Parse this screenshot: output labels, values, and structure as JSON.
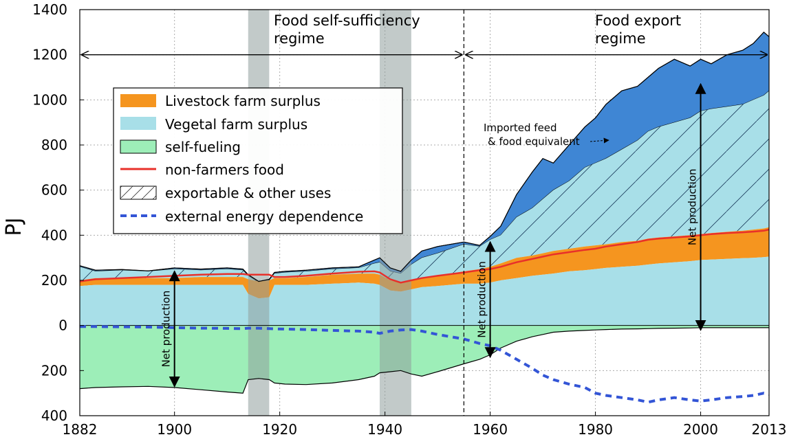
{
  "chart_data": {
    "type": "area",
    "ylabel": "PJ",
    "xlim": [
      1882,
      2013
    ],
    "ylim": [
      -400,
      1400
    ],
    "x_ticks": [
      "1882",
      "1900",
      "1920",
      "1940",
      "1960",
      "1980",
      "2000",
      "2013"
    ],
    "y_ticks": [
      {
        "v": 1400,
        "label": "1400"
      },
      {
        "v": 1200,
        "label": "1200"
      },
      {
        "v": 1000,
        "label": "1000"
      },
      {
        "v": 800,
        "label": "800"
      },
      {
        "v": 600,
        "label": "600"
      },
      {
        "v": 400,
        "label": "400"
      },
      {
        "v": 200,
        "label": "200"
      },
      {
        "v": 0,
        "label": "0"
      },
      {
        "v": -200,
        "label": "200"
      },
      {
        "v": -400,
        "label": "400"
      }
    ],
    "grid": true,
    "regimes": [
      {
        "label_line1": "Food self-sufficiency",
        "label_line2": "regime",
        "from": 1882,
        "to": 1955
      },
      {
        "label_line1": "Food export",
        "label_line2": "regime",
        "from": 1955,
        "to": 2013
      }
    ],
    "regime_divider_year": 1955,
    "shaded_periods": [
      [
        1914,
        1918
      ],
      [
        1939,
        1945
      ]
    ],
    "legend": [
      {
        "key": "livestock",
        "label": "Livestock farm surplus",
        "color": "#f5951f"
      },
      {
        "key": "vegetal",
        "label": "Vegetal farm surplus",
        "color": "#a8dfe8"
      },
      {
        "key": "self_fueling",
        "label": "self-fueling",
        "color": "#9deeb8"
      },
      {
        "key": "non_farmers",
        "label": "non-farmers food",
        "color": "#e8302a"
      },
      {
        "key": "exportable",
        "label": "exportable & other uses",
        "color": "#ffffff"
      },
      {
        "key": "external",
        "label": "external energy dependence",
        "color": "#3355d6"
      }
    ],
    "legend_position": "upper-left",
    "annotations": {
      "imported_line1": "Imported feed",
      "imported_line2": "& food equivalent",
      "net_production": "Net production"
    },
    "net_production_arrows": [
      {
        "x": 1900,
        "from": -270,
        "to": 240
      },
      {
        "x": 1960,
        "from": -140,
        "to": 370
      },
      {
        "x": 2000,
        "from": -20,
        "to": 1070
      }
    ],
    "series": {
      "x": [
        1882,
        1885,
        1890,
        1895,
        1900,
        1905,
        1910,
        1913,
        1914,
        1916,
        1918,
        1919,
        1921,
        1925,
        1930,
        1935,
        1938,
        1939,
        1941,
        1943,
        1945,
        1947,
        1950,
        1955,
        1958,
        1960,
        1962,
        1965,
        1968,
        1970,
        1972,
        1975,
        1978,
        1980,
        1982,
        1985,
        1988,
        1990,
        1992,
        1995,
        1998,
        2000,
        2002,
        2005,
        2008,
        2010,
        2012,
        2013
      ],
      "vegetal_top": [
        175,
        180,
        180,
        180,
        180,
        180,
        180,
        180,
        140,
        120,
        125,
        180,
        180,
        180,
        185,
        190,
        185,
        180,
        155,
        150,
        160,
        170,
        175,
        185,
        185,
        190,
        200,
        210,
        220,
        225,
        230,
        240,
        245,
        250,
        255,
        260,
        265,
        270,
        275,
        280,
        285,
        290,
        292,
        295,
        298,
        300,
        303,
        305
      ],
      "livestock_top": [
        200,
        210,
        210,
        210,
        210,
        215,
        215,
        215,
        205,
        195,
        200,
        210,
        210,
        215,
        225,
        230,
        230,
        225,
        200,
        190,
        200,
        210,
        220,
        240,
        250,
        260,
        275,
        300,
        310,
        320,
        330,
        340,
        350,
        355,
        360,
        370,
        375,
        385,
        390,
        395,
        400,
        405,
        410,
        415,
        420,
        425,
        430,
        435
      ],
      "non_farmers": [
        195,
        205,
        210,
        215,
        220,
        225,
        228,
        228,
        225,
        225,
        225,
        215,
        215,
        220,
        230,
        238,
        240,
        235,
        205,
        190,
        200,
        210,
        220,
        235,
        245,
        250,
        260,
        280,
        295,
        305,
        315,
        325,
        335,
        340,
        350,
        360,
        370,
        380,
        385,
        390,
        395,
        400,
        405,
        410,
        413,
        416,
        420,
        425
      ],
      "total_surplus_top": [
        260,
        240,
        245,
        240,
        250,
        245,
        250,
        245,
        220,
        190,
        200,
        230,
        235,
        240,
        250,
        255,
        275,
        280,
        240,
        230,
        270,
        300,
        320,
        360,
        350,
        380,
        400,
        480,
        520,
        560,
        600,
        640,
        700,
        720,
        740,
        780,
        820,
        860,
        880,
        900,
        920,
        950,
        960,
        970,
        980,
        1000,
        1020,
        1040
      ],
      "imported_top": [
        265,
        245,
        248,
        242,
        255,
        250,
        255,
        250,
        225,
        195,
        205,
        235,
        240,
        245,
        255,
        260,
        290,
        300,
        255,
        240,
        290,
        330,
        350,
        370,
        355,
        395,
        440,
        580,
        680,
        740,
        720,
        800,
        880,
        920,
        980,
        1040,
        1060,
        1100,
        1140,
        1180,
        1150,
        1180,
        1160,
        1200,
        1220,
        1250,
        1300,
        1280
      ],
      "self_fueling_bottom": [
        -280,
        -275,
        -272,
        -270,
        -275,
        -285,
        -295,
        -300,
        -240,
        -235,
        -240,
        -255,
        -260,
        -262,
        -255,
        -240,
        -225,
        -210,
        -205,
        -200,
        -215,
        -225,
        -205,
        -170,
        -150,
        -130,
        -100,
        -70,
        -50,
        -40,
        -30,
        -25,
        -22,
        -20,
        -18,
        -16,
        -15,
        -14,
        -13,
        -12,
        -11,
        -10,
        -10,
        -10,
        -10,
        -10,
        -10,
        -10
      ],
      "external_dependence": [
        -5,
        -5,
        -6,
        -7,
        -10,
        -12,
        -13,
        -14,
        -12,
        -12,
        -14,
        -15,
        -16,
        -18,
        -22,
        -25,
        -30,
        -35,
        -25,
        -20,
        -18,
        -25,
        -40,
        -60,
        -80,
        -90,
        -110,
        -150,
        -190,
        -220,
        -240,
        -260,
        -275,
        -300,
        -310,
        -320,
        -330,
        -340,
        -330,
        -320,
        -330,
        -335,
        -330,
        -320,
        -315,
        -310,
        -300,
        -305
      ]
    }
  }
}
